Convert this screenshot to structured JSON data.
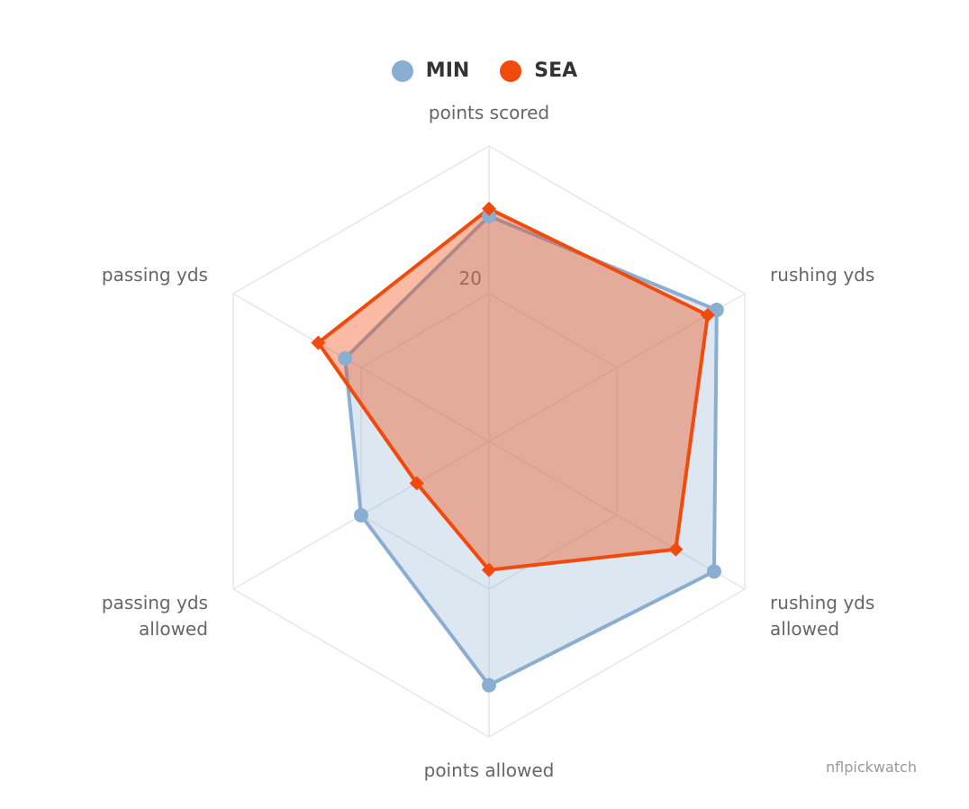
{
  "chart_data": {
    "type": "radar",
    "title": "",
    "axes": [
      "points scored",
      "rushing yds",
      "rushing yds allowed",
      "points allowed",
      "passing yds allowed",
      "passing yds"
    ],
    "axis_labels_display": [
      [
        "points scored"
      ],
      [
        "rushing yds"
      ],
      [
        "rushing yds",
        "allowed"
      ],
      [
        "points allowed"
      ],
      [
        "passing yds",
        "allowed"
      ],
      [
        "passing yds"
      ]
    ],
    "radial_max": 40,
    "radial_ticks": [
      20
    ],
    "grid": true,
    "legend_position": "top-center",
    "series": [
      {
        "name": "MIN",
        "color": "#8aaed2",
        "marker": "circle",
        "values": [
          30.5,
          35.6,
          35.2,
          33.0,
          20.0,
          22.5
        ]
      },
      {
        "name": "SEA",
        "color": "#f24a0c",
        "marker": "diamond",
        "values": [
          31.5,
          34.2,
          29.2,
          17.4,
          11.3,
          26.7
        ]
      }
    ]
  },
  "credit": "nflpickwatch"
}
